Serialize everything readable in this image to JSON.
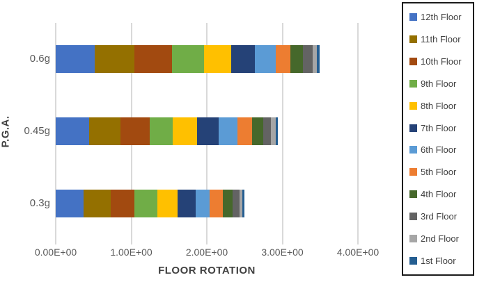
{
  "chart_data": {
    "type": "bar",
    "variant": "horizontal-stacked",
    "title": "",
    "xlabel": "FLOOR ROTATION",
    "ylabel": "P.G.A.",
    "categories": [
      "0.6g",
      "0.45g",
      "0.3g"
    ],
    "x_ticks": [
      "0.00E+00",
      "1.00E+00",
      "2.00E+00",
      "3.00E+00",
      "4.00E+00"
    ],
    "xlim": [
      0,
      4
    ],
    "grid": "vertical-major",
    "legend_position": "right",
    "series": [
      {
        "name": "12th Floor",
        "color": "#4472c4",
        "values": [
          0.52,
          0.44,
          0.37
        ]
      },
      {
        "name": "11th Floor",
        "color": "#947000",
        "values": [
          0.52,
          0.42,
          0.36
        ]
      },
      {
        "name": "10th Floor",
        "color": "#a24a10",
        "values": [
          0.5,
          0.38,
          0.31
        ]
      },
      {
        "name": "9th Floor",
        "color": "#70ad47",
        "values": [
          0.42,
          0.31,
          0.31
        ]
      },
      {
        "name": "8th Floor",
        "color": "#ffc000",
        "values": [
          0.36,
          0.32,
          0.26
        ]
      },
      {
        "name": "7th Floor",
        "color": "#254277",
        "values": [
          0.32,
          0.29,
          0.24
        ]
      },
      {
        "name": "6th Floor",
        "color": "#5b9bd5",
        "values": [
          0.27,
          0.25,
          0.19
        ]
      },
      {
        "name": "5th Floor",
        "color": "#ed7d31",
        "values": [
          0.2,
          0.19,
          0.17
        ]
      },
      {
        "name": "4th Floor",
        "color": "#46682b",
        "values": [
          0.16,
          0.15,
          0.13
        ]
      },
      {
        "name": "3rd Floor",
        "color": "#636363",
        "values": [
          0.13,
          0.1,
          0.09
        ]
      },
      {
        "name": "2nd Floor",
        "color": "#a6a6a6",
        "values": [
          0.06,
          0.06,
          0.04
        ]
      },
      {
        "name": "1st Floor",
        "color": "#255e91",
        "values": [
          0.03,
          0.03,
          0.03
        ]
      }
    ],
    "totals": [
      3.49,
      2.94,
      2.5
    ],
    "colors": {
      "gridline": "#d9d9d9",
      "axis_text": "#595959",
      "axis_title_text": "#404040",
      "legend_border": "#1a1a1a"
    }
  }
}
